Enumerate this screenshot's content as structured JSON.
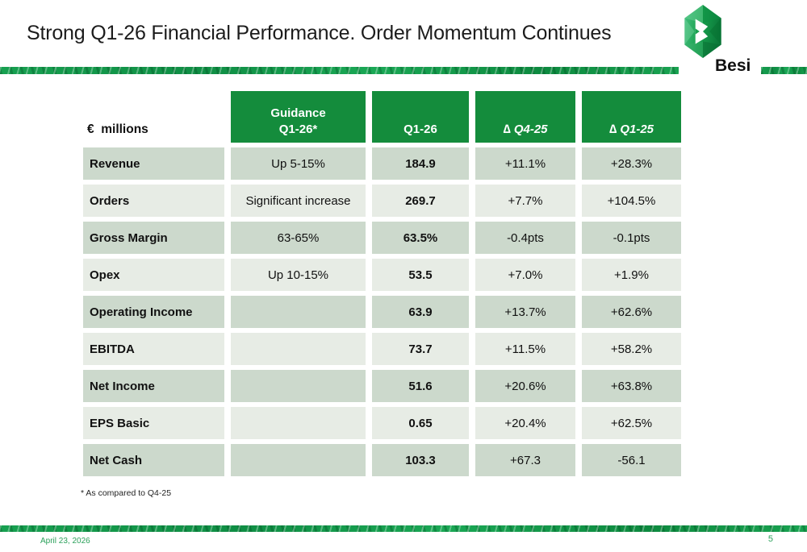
{
  "slide": {
    "title": "Strong Q1-26 Financial Performance. Order Momentum Continues",
    "logo_text": "Besi",
    "footnote": "* As compared to Q4-25",
    "footer": {
      "date": "April 23, 2026",
      "page": "5"
    }
  },
  "table": {
    "unit_label": "€  millions",
    "col_guidance_line1": "Guidance",
    "col_guidance_line2": "Q1-26*",
    "col_q126": "Q1-26",
    "col_delta_q425": "∆ Q4-25",
    "col_delta_q125": "∆ Q1-25",
    "rows": [
      {
        "label": "Revenue",
        "guidance": "Up 5-15%",
        "q126": "184.9",
        "dq425": "+11.1%",
        "dq125": "+28.3%"
      },
      {
        "label": "Orders",
        "guidance": "Significant increase",
        "q126": "269.7",
        "dq425": "+7.7%",
        "dq125": "+104.5%"
      },
      {
        "label": "Gross Margin",
        "guidance": "63-65%",
        "q126": "63.5%",
        "dq425": "-0.4pts",
        "dq125": "-0.1pts"
      },
      {
        "label": "Opex",
        "guidance": "Up 10-15%",
        "q126": "53.5",
        "dq425": "+7.0%",
        "dq125": "+1.9%"
      },
      {
        "label": "Operating Income",
        "guidance": "",
        "q126": "63.9",
        "dq425": "+13.7%",
        "dq125": "+62.6%"
      },
      {
        "label": "EBITDA",
        "guidance": "",
        "q126": "73.7",
        "dq425": "+11.5%",
        "dq125": "+58.2%"
      },
      {
        "label": "Net Income",
        "guidance": "",
        "q126": "51.6",
        "dq425": "+20.6%",
        "dq125": "+63.8%"
      },
      {
        "label": "EPS Basic",
        "guidance": "",
        "q126": "0.65",
        "dq425": "+20.4%",
        "dq125": "+62.5%"
      },
      {
        "label": "Net Cash",
        "guidance": "",
        "q126": "103.3",
        "dq425": "+67.3",
        "dq125": "-56.1"
      }
    ]
  },
  "colors": {
    "header_green": "#148c3c",
    "row_dark": "#ccd9cc",
    "row_light": "#e7ece5",
    "divider_green": "#18a04e",
    "footer_text_green": "#2ba15b"
  }
}
